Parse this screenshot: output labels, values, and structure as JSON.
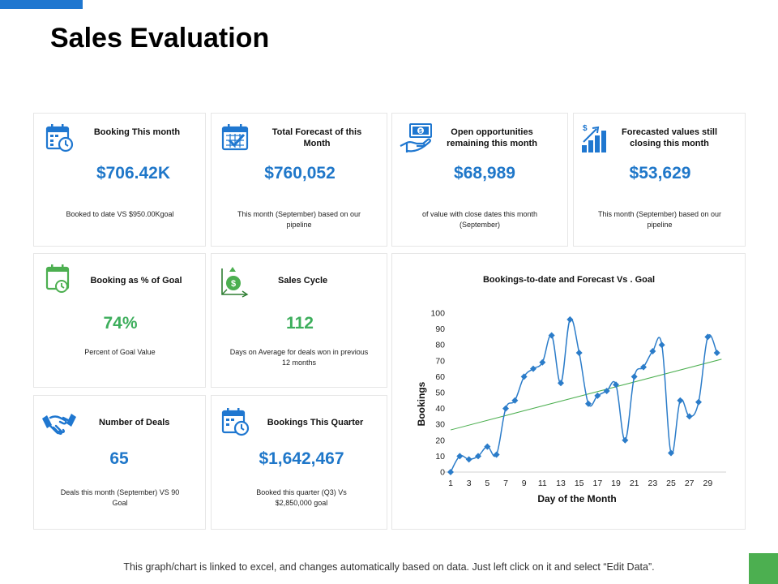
{
  "page": {
    "title": "Sales Evaluation",
    "footer_note": "This graph/chart is linked to excel, and changes automatically based on data. Just left click on it and select “Edit Data”."
  },
  "colors": {
    "accent_blue": "#1f77d0",
    "value_blue": "#1f77c9",
    "value_green": "#3dae5c",
    "trend_green": "#4caf50",
    "corner_green": "#4caf50"
  },
  "cards": {
    "booking_month": {
      "title": "Booking This month",
      "value": "$706.42K",
      "note": "Booked to date VS $950.00Kgoal",
      "icon": "calendar-clock-icon"
    },
    "total_forecast": {
      "title": "Total Forecast of this Month",
      "value": "$760,052",
      "note": "This month (September) based on our pipeline",
      "icon": "calendar-check-icon"
    },
    "open_opportunities": {
      "title": "Open opportunities remaining this month",
      "value": "$68,989",
      "note": "of value with close dates this month (September)",
      "icon": "hand-money-icon"
    },
    "forecasted_values": {
      "title": "Forecasted values still closing this month",
      "value": "$53,629",
      "note": "This month (September) based on our pipeline",
      "icon": "growth-bars-icon"
    },
    "booking_goal": {
      "title": "Booking as % of Goal",
      "value": "74%",
      "note": "Percent of Goal Value",
      "icon": "calendar-clock-icon"
    },
    "sales_cycle": {
      "title": "Sales Cycle",
      "value": "112",
      "note": "Days on Average for deals won in previous 12 months",
      "icon": "dollar-cycle-icon"
    },
    "number_deals": {
      "title": "Number of Deals",
      "value": "65",
      "note": "Deals this month (September) VS 90 Goal",
      "icon": "handshake-icon"
    },
    "bookings_quarter": {
      "title": "Bookings This Quarter",
      "value": "$1,642,467",
      "note": "Booked this quarter (Q3) Vs $2,850,000 goal",
      "icon": "calendar-clock-icon"
    }
  },
  "chart_data": {
    "type": "line",
    "title": "Bookings-to-date and Forecast Vs . Goal",
    "xlabel": "Day of the Month",
    "ylabel": "Bookings",
    "x": [
      1,
      2,
      3,
      4,
      5,
      6,
      7,
      8,
      9,
      10,
      11,
      12,
      13,
      14,
      15,
      16,
      17,
      18,
      19,
      20,
      21,
      22,
      23,
      24,
      25,
      26,
      27,
      28,
      29,
      30
    ],
    "x_tick_labels": [
      "1",
      "3",
      "5",
      "7",
      "9",
      "11",
      "13",
      "15",
      "17",
      "19",
      "21",
      "23",
      "25",
      "27",
      "29"
    ],
    "y_tick_labels": [
      "0",
      "10",
      "20",
      "30",
      "40",
      "50",
      "60",
      "70",
      "80",
      "90",
      "100"
    ],
    "ylim": [
      0,
      100
    ],
    "xlim": [
      1,
      31
    ],
    "series": [
      {
        "name": "Bookings",
        "values": [
          0,
          10,
          8,
          10,
          16,
          11,
          40,
          45,
          60,
          65,
          69,
          86,
          56,
          96,
          75,
          43,
          48,
          51,
          55,
          20,
          60,
          66,
          76,
          80,
          12,
          45,
          35,
          44,
          85,
          75
        ],
        "color": "#2b7cc9",
        "marker": "diamond"
      },
      {
        "name": "Goal trend",
        "values_at_ends": [
          26.5,
          71
        ],
        "color": "#4caf50"
      }
    ],
    "grid": false
  }
}
